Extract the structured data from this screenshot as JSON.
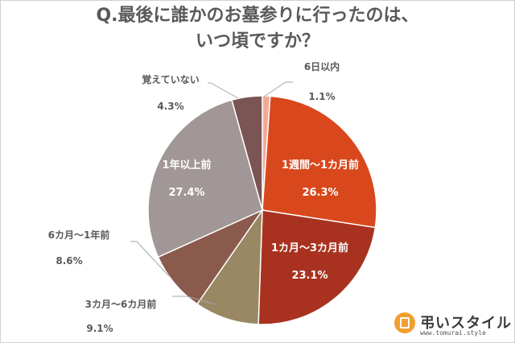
{
  "chart_data": {
    "type": "pie",
    "title": "Q.最後に誰かのお墓参りに行ったのは、いつ頃ですか？",
    "title_lines": [
      "Q.最後に誰かのお墓参りに行ったのは、",
      "いつ頃ですか？"
    ],
    "start": "12 o'clock",
    "direction": "clockwise",
    "slices": [
      {
        "label": "6日以内",
        "value": 1.1,
        "display": "1.1%",
        "color": "#f4a896"
      },
      {
        "label": "1週間～1カ月前",
        "value": 26.3,
        "display": "26.3%",
        "color": "#d9481c"
      },
      {
        "label": "1カ月～3カ月前",
        "value": 23.1,
        "display": "23.1%",
        "color": "#a8321f"
      },
      {
        "label": "3カ月～6カ月前",
        "value": 9.1,
        "display": "9.1%",
        "color": "#9a8764"
      },
      {
        "label": "6カ月～1年前",
        "value": 8.6,
        "display": "8.6%",
        "color": "#8a5a4c"
      },
      {
        "label": "1年以上前",
        "value": 27.4,
        "display": "27.4%",
        "color": "#a09796"
      },
      {
        "label": "覚えていない",
        "value": 4.3,
        "display": "4.3%",
        "color": "#7b5454"
      }
    ]
  },
  "logo": {
    "name": "弔いスタイル",
    "url": "www.tomurai.style"
  }
}
